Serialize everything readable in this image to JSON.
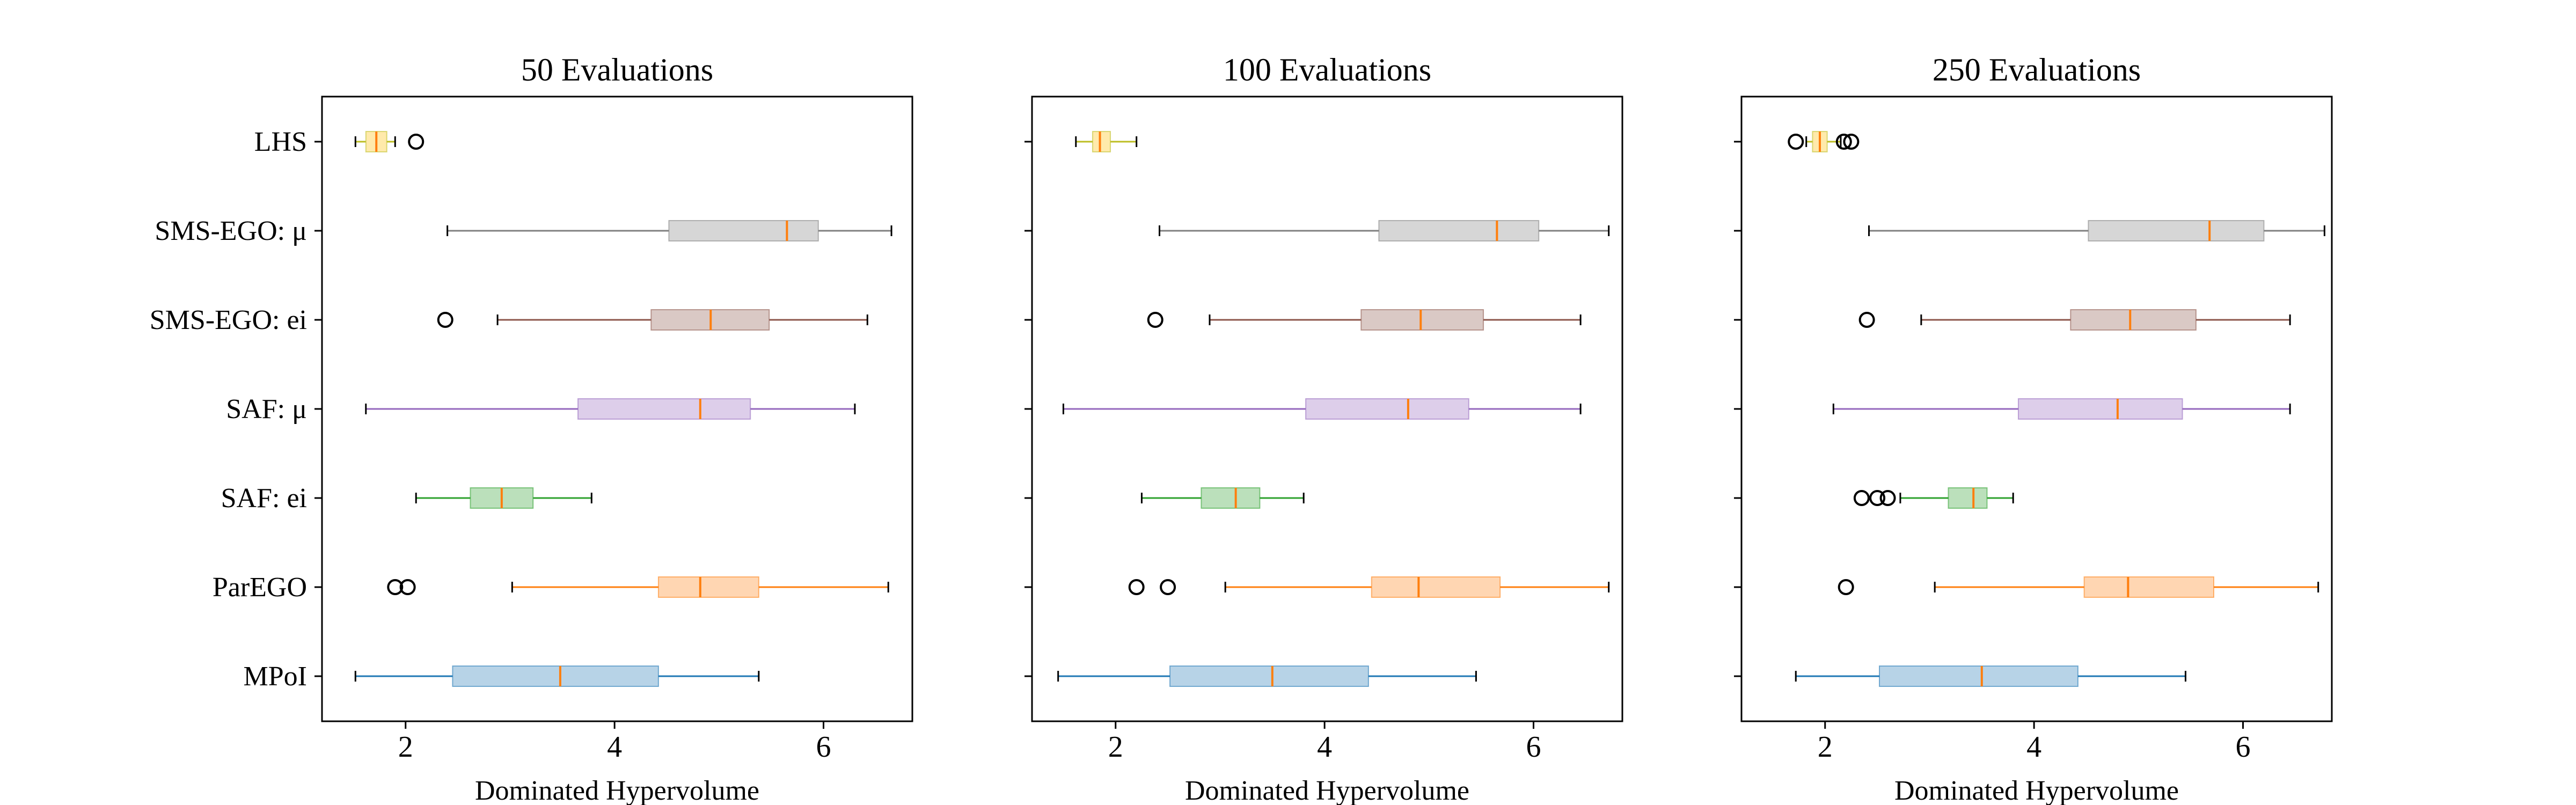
{
  "chart_data": [
    {
      "type": "boxplot",
      "orientation": "horizontal",
      "title": "50 Evaluations",
      "xlabel": "Dominated Hypervolume",
      "ylabel": "",
      "xlim": [
        1.2,
        6.85
      ],
      "xticks": [
        2,
        4,
        6
      ],
      "grid": false,
      "series": [
        {
          "name": "MPoI",
          "color": "#1f77b4",
          "whisker_low": 1.52,
          "q1": 2.45,
          "median": 3.48,
          "q3": 4.42,
          "whisker_high": 5.38,
          "outliers": []
        },
        {
          "name": "ParEGO",
          "color": "#ff7f0e",
          "whisker_low": 3.02,
          "q1": 4.42,
          "median": 4.82,
          "q3": 5.38,
          "whisker_high": 6.62,
          "outliers": [
            1.9,
            2.02
          ]
        },
        {
          "name": "SAF: ei",
          "color": "#2ca02c",
          "whisker_low": 2.1,
          "q1": 2.62,
          "median": 2.92,
          "q3": 3.22,
          "whisker_high": 3.78,
          "outliers": []
        },
        {
          "name": "SAF: μ",
          "color": "#9467bd",
          "whisker_low": 1.62,
          "q1": 3.65,
          "median": 4.82,
          "q3": 5.3,
          "whisker_high": 6.3,
          "outliers": []
        },
        {
          "name": "SMS-EGO: ei",
          "color": "#8c564b",
          "whisker_low": 2.88,
          "q1": 4.35,
          "median": 4.92,
          "q3": 5.48,
          "whisker_high": 6.42,
          "outliers": [
            2.38
          ]
        },
        {
          "name": "SMS-EGO: μ",
          "color": "#7f7f7f",
          "whisker_low": 2.4,
          "q1": 4.52,
          "median": 5.65,
          "q3": 5.95,
          "whisker_high": 6.65,
          "outliers": []
        },
        {
          "name": "LHS",
          "color": "#bcbd22",
          "fill_color": "#ffd966",
          "whisker_low": 1.52,
          "q1": 1.62,
          "median": 1.72,
          "q3": 1.82,
          "whisker_high": 1.9,
          "outliers": [
            2.1
          ]
        }
      ]
    },
    {
      "type": "boxplot",
      "orientation": "horizontal",
      "title": "100 Evaluations",
      "xlabel": "Dominated Hypervolume",
      "ylabel": "",
      "xlim": [
        1.2,
        6.85
      ],
      "xticks": [
        2,
        4,
        6
      ],
      "grid": false,
      "series": [
        {
          "name": "MPoI",
          "color": "#1f77b4",
          "whisker_low": 1.45,
          "q1": 2.52,
          "median": 3.5,
          "q3": 4.42,
          "whisker_high": 5.45,
          "outliers": []
        },
        {
          "name": "ParEGO",
          "color": "#ff7f0e",
          "whisker_low": 3.05,
          "q1": 4.45,
          "median": 4.9,
          "q3": 5.68,
          "whisker_high": 6.72,
          "outliers": [
            2.2,
            2.5
          ]
        },
        {
          "name": "SAF: ei",
          "color": "#2ca02c",
          "whisker_low": 2.25,
          "q1": 2.82,
          "median": 3.15,
          "q3": 3.38,
          "whisker_high": 3.8,
          "outliers": []
        },
        {
          "name": "SAF: μ",
          "color": "#9467bd",
          "whisker_low": 1.5,
          "q1": 3.82,
          "median": 4.8,
          "q3": 5.38,
          "whisker_high": 6.45,
          "outliers": []
        },
        {
          "name": "SMS-EGO: ei",
          "color": "#8c564b",
          "whisker_low": 2.9,
          "q1": 4.35,
          "median": 4.92,
          "q3": 5.52,
          "whisker_high": 6.45,
          "outliers": [
            2.38
          ]
        },
        {
          "name": "SMS-EGO: μ",
          "color": "#7f7f7f",
          "whisker_low": 2.42,
          "q1": 4.52,
          "median": 5.65,
          "q3": 6.05,
          "whisker_high": 6.72,
          "outliers": []
        },
        {
          "name": "LHS",
          "color": "#bcbd22",
          "fill_color": "#ffd966",
          "whisker_low": 1.62,
          "q1": 1.78,
          "median": 1.85,
          "q3": 1.95,
          "whisker_high": 2.2,
          "outliers": []
        }
      ]
    },
    {
      "type": "boxplot",
      "orientation": "horizontal",
      "title": "250 Evaluations",
      "xlabel": "Dominated Hypervolume",
      "ylabel": "",
      "xlim": [
        1.2,
        6.85
      ],
      "xticks": [
        2,
        4,
        6
      ],
      "grid": false,
      "series": [
        {
          "name": "MPoI",
          "color": "#1f77b4",
          "whisker_low": 1.72,
          "q1": 2.52,
          "median": 3.5,
          "q3": 4.42,
          "whisker_high": 5.45,
          "outliers": []
        },
        {
          "name": "ParEGO",
          "color": "#ff7f0e",
          "whisker_low": 3.05,
          "q1": 4.48,
          "median": 4.9,
          "q3": 5.72,
          "whisker_high": 6.72,
          "outliers": [
            2.2
          ]
        },
        {
          "name": "SAF: ei",
          "color": "#2ca02c",
          "whisker_low": 2.72,
          "q1": 3.18,
          "median": 3.42,
          "q3": 3.55,
          "whisker_high": 3.8,
          "outliers": [
            2.35,
            2.5,
            2.6
          ]
        },
        {
          "name": "SAF: μ",
          "color": "#9467bd",
          "whisker_low": 2.08,
          "q1": 3.85,
          "median": 4.8,
          "q3": 5.42,
          "whisker_high": 6.45,
          "outliers": []
        },
        {
          "name": "SMS-EGO: ei",
          "color": "#8c564b",
          "whisker_low": 2.92,
          "q1": 4.35,
          "median": 4.92,
          "q3": 5.55,
          "whisker_high": 6.45,
          "outliers": [
            2.4
          ]
        },
        {
          "name": "SMS-EGO: μ",
          "color": "#7f7f7f",
          "whisker_low": 2.42,
          "q1": 4.52,
          "median": 5.68,
          "q3": 6.2,
          "whisker_high": 6.78,
          "outliers": []
        },
        {
          "name": "LHS",
          "color": "#bcbd22",
          "fill_color": "#ffd966",
          "whisker_low": 1.82,
          "q1": 1.88,
          "median": 1.95,
          "q3": 2.02,
          "whisker_high": 2.15,
          "outliers": [
            1.72,
            2.18,
            2.25
          ]
        }
      ]
    }
  ]
}
